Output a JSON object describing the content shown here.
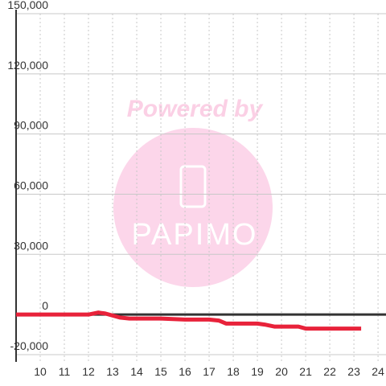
{
  "chart_data": {
    "type": "line",
    "watermark": {
      "caption": "Powered by",
      "logo": "PAPIMO"
    },
    "x": [
      9,
      12,
      12.4,
      12.7,
      13,
      13.3,
      13.7,
      15,
      16,
      17,
      17.4,
      17.7,
      19,
      19.3,
      19.7,
      20,
      20.7,
      21,
      23.3
    ],
    "series": [
      {
        "color": "#e8223a",
        "values": [
          0,
          0,
          1000,
          500,
          -500,
          -1500,
          -2000,
          -2000,
          -2500,
          -2500,
          -3000,
          -4500,
          -4500,
          -5000,
          -6000,
          -6000,
          -6000,
          -7000,
          -7000
        ]
      }
    ],
    "xlim": [
      9,
      24.33
    ],
    "xticks": [
      10,
      11,
      12,
      13,
      14,
      15,
      16,
      17,
      18,
      19,
      20,
      21,
      22,
      23,
      24
    ],
    "ylim": [
      -23600,
      150000
    ],
    "yticks": [
      {
        "value": -20000,
        "label": "-20,000"
      },
      0,
      {
        "value": 30000,
        "label": "30,000"
      },
      {
        "value": 60000,
        "label": "60,000"
      },
      {
        "value": 90000,
        "label": "90,000"
      },
      {
        "value": 120000,
        "label": "120,000"
      },
      {
        "value": 150000,
        "label": "150,000"
      }
    ],
    "grid": true
  }
}
